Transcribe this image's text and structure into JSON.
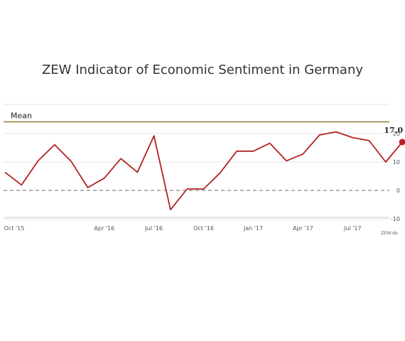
{
  "chart_data": {
    "type": "line",
    "title": "ZEW Indicator of Economic Sentiment in Germany",
    "xlabel": "",
    "ylabel": "",
    "ylim": [
      -10,
      20
    ],
    "y_ticks": [
      "20",
      "10",
      "0",
      "-10"
    ],
    "x_tick_labels": [
      "Oct '15",
      "Apr '16",
      "Jul '16",
      "Oct '16",
      "Jan '17",
      "Apr '17",
      "Jul '17"
    ],
    "grid": true,
    "zero_line": "dashed",
    "series": [
      {
        "values": [
          6.4,
          1.9,
          10.4,
          16.1,
          10.2,
          1.0,
          4.3,
          11.2,
          6.4,
          19.2,
          -6.8,
          0.5,
          0.5,
          6.2,
          13.8,
          13.8,
          16.6,
          10.4,
          12.8,
          19.5,
          20.6,
          18.6,
          17.5,
          10.0,
          17.0
        ],
        "color": "#b22222"
      }
    ],
    "mean": {
      "label": "Mean",
      "value": 24.0,
      "color": "#8b7d2b"
    },
    "last_value_label": "17.0",
    "source": "ZEW.de"
  }
}
